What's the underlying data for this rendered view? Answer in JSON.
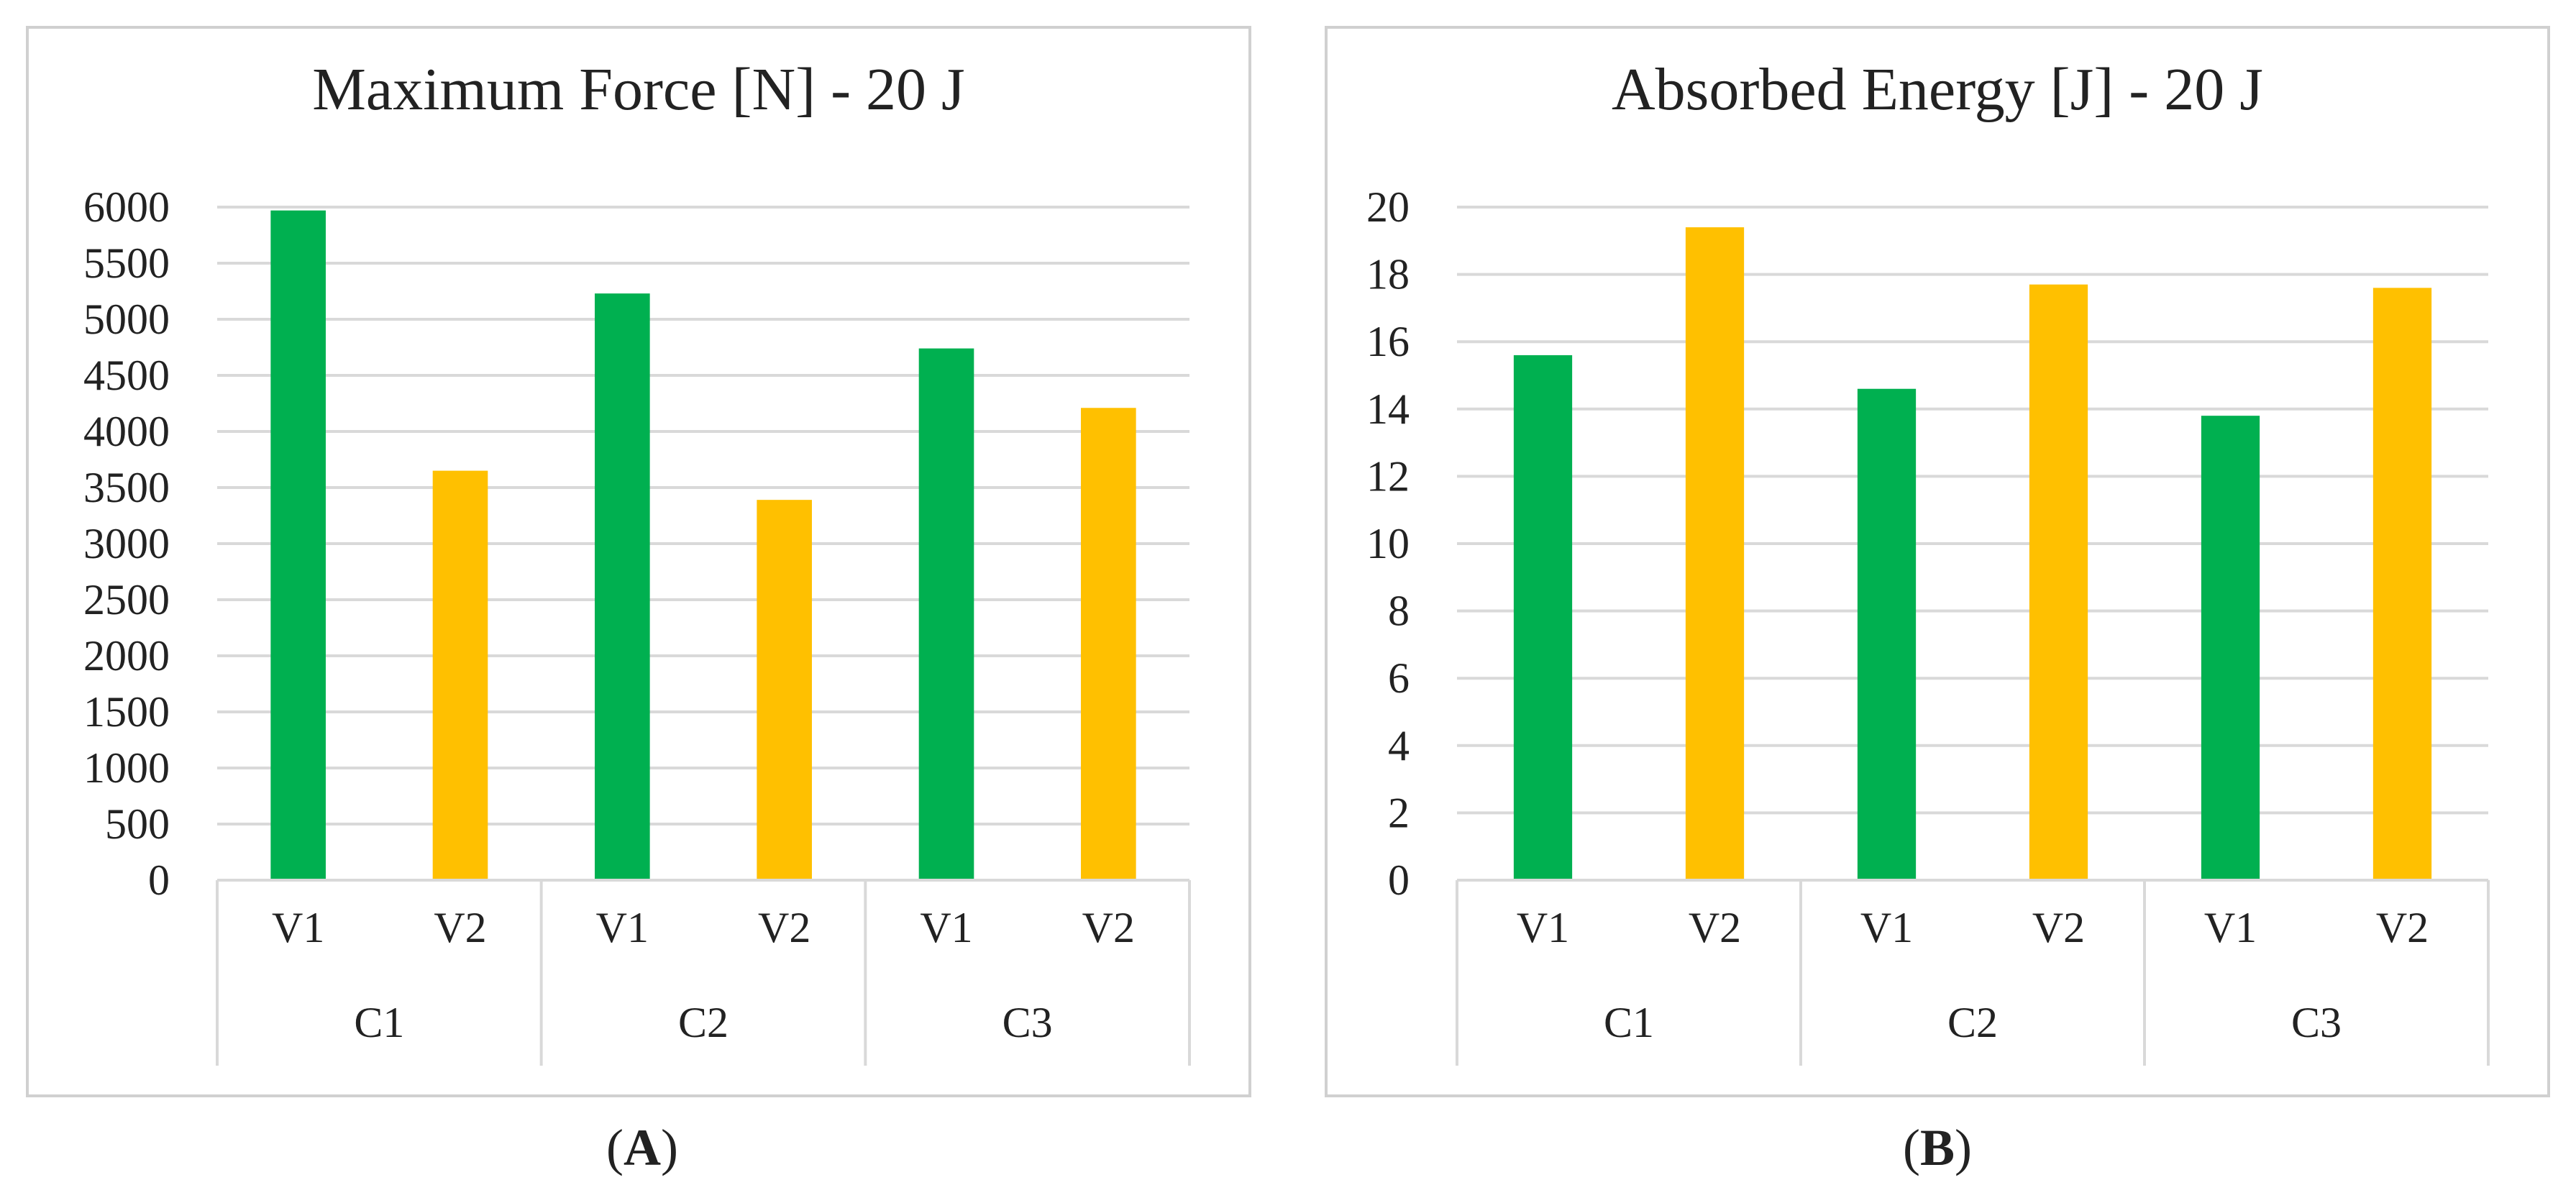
{
  "colors": {
    "V1": "#00B050",
    "V2": "#FFC000"
  },
  "chart_data": [
    {
      "type": "bar",
      "title": "Maximum Force [N] - 20 J",
      "panel_label": {
        "open": "(",
        "letter": "A",
        "close": ")"
      },
      "groups": [
        "C1",
        "C2",
        "C3"
      ],
      "categories": [
        "V1",
        "V2",
        "V1",
        "V2",
        "V1",
        "V2"
      ],
      "values": [
        5970,
        3650,
        5230,
        3390,
        4740,
        4210
      ],
      "ylim": [
        0,
        6000
      ],
      "yticks": [
        "0",
        "500",
        "1000",
        "1500",
        "2000",
        "2500",
        "3000",
        "3500",
        "4000",
        "4500",
        "5000",
        "5500",
        "6000"
      ],
      "xlabel": "",
      "ylabel": "",
      "grid": true,
      "legend": "none"
    },
    {
      "type": "bar",
      "title": "Absorbed Energy [J] - 20 J",
      "panel_label": {
        "open": "(",
        "letter": "B",
        "close": ")"
      },
      "groups": [
        "C1",
        "C2",
        "C3"
      ],
      "categories": [
        "V1",
        "V2",
        "V1",
        "V2",
        "V1",
        "V2"
      ],
      "values": [
        15.6,
        19.4,
        14.6,
        17.7,
        13.8,
        17.6
      ],
      "ylim": [
        0,
        20
      ],
      "yticks": [
        "0",
        "2",
        "4",
        "6",
        "8",
        "10",
        "12",
        "14",
        "16",
        "18",
        "20"
      ],
      "xlabel": "",
      "ylabel": "",
      "grid": true,
      "legend": "none"
    }
  ]
}
